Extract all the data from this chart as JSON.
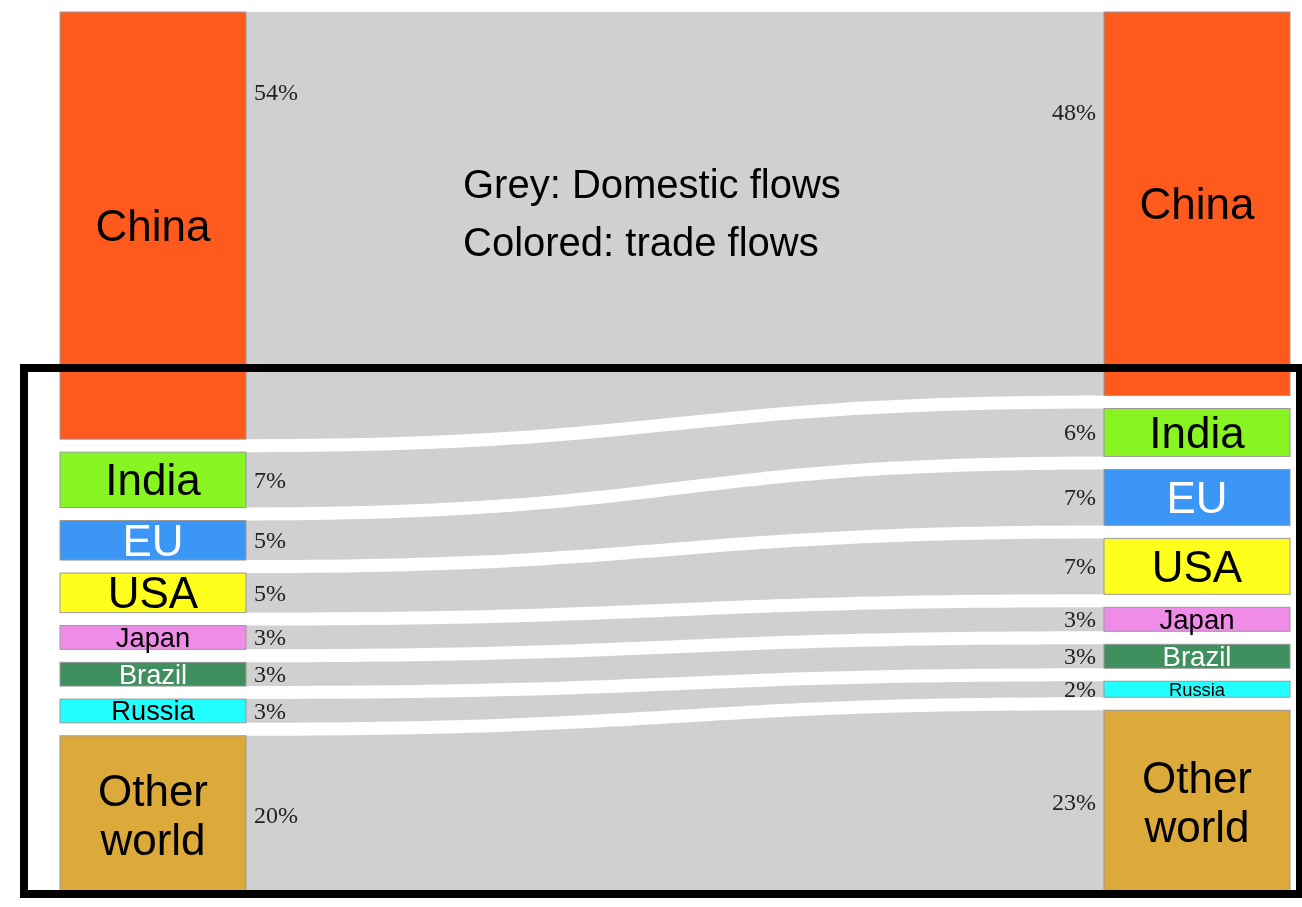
{
  "chart_data": {
    "type": "other",
    "categories": [
      "China",
      "India",
      "EU",
      "USA",
      "Japan",
      "Brazil",
      "Russia",
      "Other world"
    ],
    "colors": [
      "#ff5a1e",
      "#88f522",
      "#3c96f5",
      "#ffff1e",
      "#ee8ce8",
      "#3f8f5f",
      "#22ffff",
      "#dcaa3a"
    ],
    "series": [
      {
        "values": [
          54,
          7,
          5,
          5,
          3,
          3,
          3,
          20
        ],
        "value_labels": [
          "54%",
          "7%",
          "5%",
          "5%",
          "3%",
          "3%",
          "3%",
          "20%"
        ]
      },
      {
        "values": [
          48,
          6,
          7,
          7,
          3,
          3,
          2,
          23
        ],
        "value_labels": [
          "48%",
          "6%",
          "7%",
          "7%",
          "3%",
          "3%",
          "2%",
          "23%"
        ]
      }
    ],
    "annotations": [
      "Grey: Domestic flows",
      "Colored: trade flows"
    ]
  }
}
